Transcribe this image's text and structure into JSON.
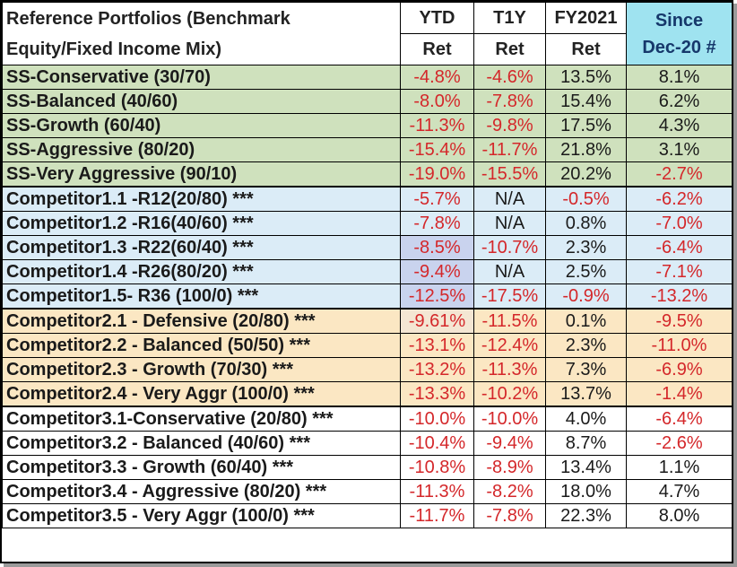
{
  "header": {
    "title_line1": "Reference Portfolios (Benchmark",
    "title_line2": "Equity/Fixed Income Mix)",
    "col_ytd": "YTD",
    "col_ytd_sub": "Ret",
    "col_t1y": "T1Y",
    "col_t1y_sub": "Ret",
    "col_fy2021": "FY2021",
    "col_fy2021_sub": "Ret",
    "col_since_line1": "Since",
    "col_since_line2": "Dec-20 #"
  },
  "colors": {
    "negative": "#d4272a",
    "ss_group_bg": "#cfe1bd",
    "competitor1_bg": "#dbecf7",
    "competitor2_bg": "#fbe7c3",
    "competitor3_bg": "#ffffff",
    "since_header_bg": "#9fe3f0"
  },
  "rows": [
    {
      "name": "SS-Conservative (30/70)",
      "ytd": "-4.8%",
      "t1y": "-4.6%",
      "fy2021": "13.5%",
      "since": "8.1%"
    },
    {
      "name": "SS-Balanced (40/60)",
      "ytd": "-8.0%",
      "t1y": "-7.8%",
      "fy2021": "15.4%",
      "since": "6.2%"
    },
    {
      "name": "SS-Growth (60/40)",
      "ytd": "-11.3%",
      "t1y": "-9.8%",
      "fy2021": "17.5%",
      "since": "4.3%"
    },
    {
      "name": "SS-Aggressive (80/20)",
      "ytd": "-15.4%",
      "t1y": "-11.7%",
      "fy2021": "21.8%",
      "since": "3.1%"
    },
    {
      "name": "SS-Very Aggressive (90/10)",
      "ytd": "-19.0%",
      "t1y": "-15.5%",
      "fy2021": "20.2%",
      "since": "-2.7%"
    },
    {
      "name": "Competitor1.1 -R12(20/80) ***",
      "ytd": "-5.7%",
      "t1y": "N/A",
      "fy2021": "-0.5%",
      "since": "-6.2%"
    },
    {
      "name": "Competitor1.2 -R16(40/60) ***",
      "ytd": "-7.8%",
      "t1y": "N/A",
      "fy2021": "0.8%",
      "since": "-7.0%"
    },
    {
      "name": "Competitor1.3 -R22(60/40) ***",
      "ytd": "-8.5%",
      "t1y": "-10.7%",
      "fy2021": "2.3%",
      "since": "-6.4%"
    },
    {
      "name": "Competitor1.4 -R26(80/20) ***",
      "ytd": "-9.4%",
      "t1y": "N/A",
      "fy2021": "2.5%",
      "since": "-7.1%"
    },
    {
      "name": "Competitor1.5- R36 (100/0) ***",
      "ytd": "-12.5%",
      "t1y": "-17.5%",
      "fy2021": "-0.9%",
      "since": "-13.2%"
    },
    {
      "name": "Competitor2.1  - Defensive  (20/80) ***",
      "ytd": "-9.61%",
      "t1y": "-11.5%",
      "fy2021": "0.1%",
      "since": "-9.5%"
    },
    {
      "name": "Competitor2.2  - Balanced (50/50) ***",
      "ytd": "-13.1%",
      "t1y": "-12.4%",
      "fy2021": "2.3%",
      "since": "-11.0%"
    },
    {
      "name": "Competitor2.3  - Growth  (70/30) ***",
      "ytd": "-13.2%",
      "t1y": "-11.3%",
      "fy2021": "7.3%",
      "since": "-6.9%"
    },
    {
      "name": "Competitor2.4  - Very Aggr  (100/0) ***",
      "ytd": "-13.3%",
      "t1y": "-10.2%",
      "fy2021": "13.7%",
      "since": "-1.4%"
    },
    {
      "name": "Competitor3.1-Conservative (20/80) ***",
      "ytd": "-10.0%",
      "t1y": "-10.0%",
      "fy2021": "4.0%",
      "since": "-6.4%"
    },
    {
      "name": "Competitor3.2  - Balanced  (40/60) ***",
      "ytd": "-10.4%",
      "t1y": "-9.4%",
      "fy2021": "8.7%",
      "since": "-2.6%"
    },
    {
      "name": "Competitor3.3  - Growth  (60/40) ***",
      "ytd": "-10.8%",
      "t1y": "-8.9%",
      "fy2021": "13.4%",
      "since": "1.1%"
    },
    {
      "name": "Competitor3.4  - Aggressive  (80/20) ***",
      "ytd": "-11.3%",
      "t1y": "-8.2%",
      "fy2021": "18.0%",
      "since": "4.7%"
    },
    {
      "name": "Competitor3.5  - Very Aggr (100/0) ***",
      "ytd": "-11.7%",
      "t1y": "-7.8%",
      "fy2021": "22.3%",
      "since": "8.0%"
    }
  ]
}
